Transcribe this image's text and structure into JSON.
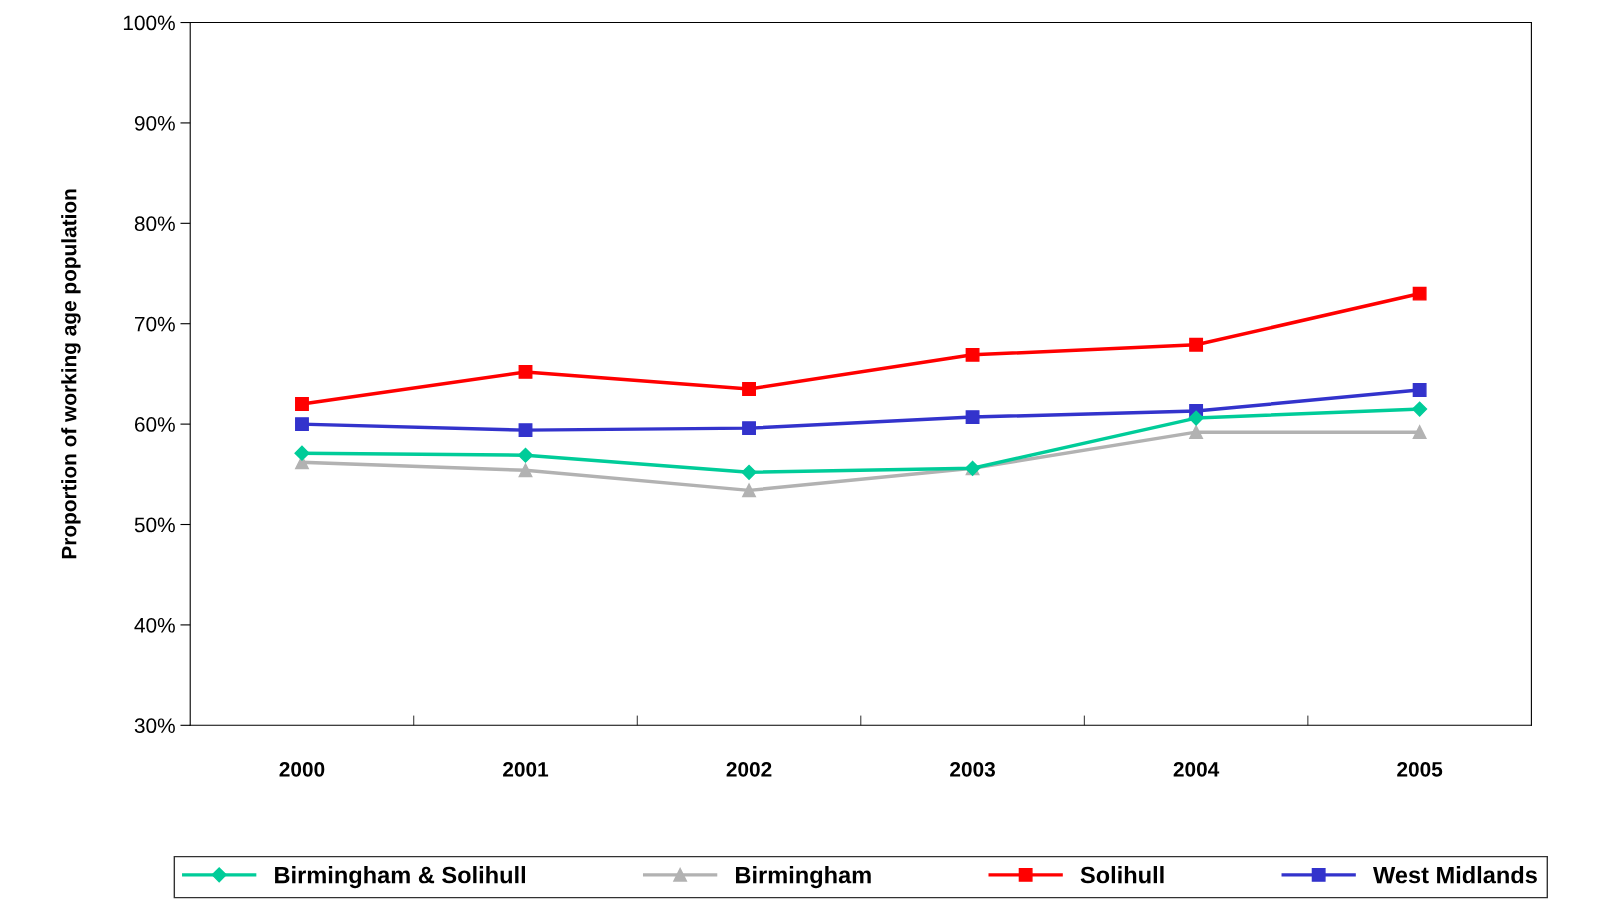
{
  "chart_data": {
    "type": "line",
    "ylabel": "Proportion of working age population",
    "categories": [
      "2000",
      "2001",
      "2002",
      "2003",
      "2004",
      "2005"
    ],
    "series": [
      {
        "name": "Birmingham & Solihull",
        "color": "#00cc99",
        "marker": "diamond",
        "values": [
          57.1,
          56.9,
          55.2,
          55.6,
          60.6,
          61.5
        ]
      },
      {
        "name": "Birmingham",
        "color": "#b2b2b2",
        "marker": "triangle",
        "values": [
          56.2,
          55.4,
          53.4,
          55.6,
          59.2,
          59.2
        ]
      },
      {
        "name": "Solihull",
        "color": "#ff0000",
        "marker": "square",
        "values": [
          62.0,
          65.2,
          63.5,
          66.9,
          67.9,
          73.0
        ]
      },
      {
        "name": "West Midlands",
        "color": "#3333cc",
        "marker": "square",
        "values": [
          60.0,
          59.4,
          59.6,
          60.7,
          61.3,
          63.4
        ]
      }
    ],
    "ylim": [
      30,
      100
    ],
    "yticks": [
      {
        "value": 30,
        "label": "30%"
      },
      {
        "value": 40,
        "label": "40%"
      },
      {
        "value": 50,
        "label": "50%"
      },
      {
        "value": 60,
        "label": "60%"
      },
      {
        "value": 70,
        "label": "70%"
      },
      {
        "value": 80,
        "label": "80%"
      },
      {
        "value": 90,
        "label": "90%"
      },
      {
        "value": 100,
        "label": "100%"
      }
    ],
    "grid": false,
    "legend": "bottom",
    "line_style": "solid"
  }
}
